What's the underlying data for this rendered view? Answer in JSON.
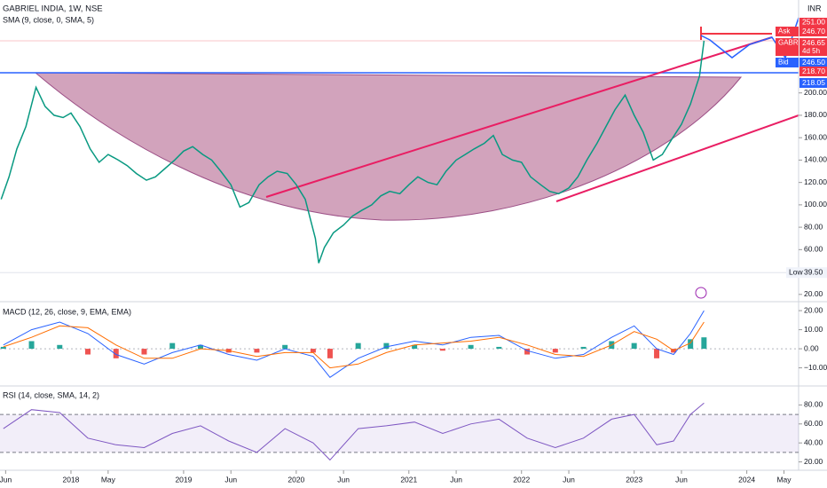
{
  "chart_data": [
    {
      "type": "line",
      "title": "GABRIEL INDIA, 1W, NSE",
      "subtitle": "SMA (9, close, 0, SMA, 5)",
      "currency": "INR",
      "color": "#089981",
      "xlim": [
        2017.37,
        2024.46
      ],
      "ylim": [
        13.5,
        283
      ],
      "xticks": [
        {
          "value": 2017.42,
          "label": "Jun"
        },
        2018,
        {
          "value": 2018.33,
          "label": "May"
        },
        2019,
        {
          "value": 2019.42,
          "label": "Jun"
        },
        2020,
        {
          "value": 2020.42,
          "label": "Jun"
        },
        2021,
        {
          "value": 2021.42,
          "label": "Jun"
        },
        2022,
        {
          "value": 2022.42,
          "label": "Jun"
        },
        2023,
        {
          "value": 2023.42,
          "label": "Jun"
        },
        2024,
        {
          "value": 2024.33,
          "label": "May"
        }
      ],
      "yticks": [
        {
          "value": 200,
          "label": "200.00"
        },
        {
          "value": 180,
          "label": "180.00"
        },
        {
          "value": 160,
          "label": "160.00"
        },
        {
          "value": 140,
          "label": "140.00"
        },
        {
          "value": 120,
          "label": "120.00"
        },
        {
          "value": 100,
          "label": "100.00"
        },
        {
          "value": 80,
          "label": "80.00"
        },
        {
          "value": 60,
          "label": "60.00"
        },
        {
          "value": 20,
          "label": "20.00"
        }
      ],
      "x": [
        2017.38,
        2017.45,
        2017.52,
        2017.6,
        2017.69,
        2017.77,
        2017.85,
        2017.93,
        2018.0,
        2018.08,
        2018.17,
        2018.25,
        2018.33,
        2018.42,
        2018.5,
        2018.58,
        2018.67,
        2018.75,
        2018.83,
        2018.92,
        2019.0,
        2019.08,
        2019.17,
        2019.25,
        2019.33,
        2019.42,
        2019.5,
        2019.58,
        2019.67,
        2019.75,
        2019.83,
        2019.92,
        2020.0,
        2020.08,
        2020.17,
        2020.2,
        2020.25,
        2020.33,
        2020.42,
        2020.5,
        2020.58,
        2020.67,
        2020.75,
        2020.83,
        2020.92,
        2021.0,
        2021.08,
        2021.17,
        2021.25,
        2021.33,
        2021.42,
        2021.5,
        2021.58,
        2021.67,
        2021.75,
        2021.83,
        2021.92,
        2022.0,
        2022.08,
        2022.17,
        2022.25,
        2022.33,
        2022.42,
        2022.5,
        2022.58,
        2022.67,
        2022.75,
        2022.83,
        2022.92,
        2023.0,
        2023.08,
        2023.17,
        2023.25,
        2023.33,
        2023.42,
        2023.5,
        2023.58,
        2023.62
      ],
      "values": [
        105,
        125,
        150,
        170,
        205,
        188,
        180,
        178,
        182,
        170,
        150,
        138,
        145,
        140,
        135,
        128,
        122,
        125,
        132,
        140,
        148,
        152,
        145,
        140,
        130,
        118,
        98,
        102,
        118,
        125,
        130,
        128,
        118,
        105,
        70,
        48,
        62,
        75,
        82,
        90,
        95,
        100,
        108,
        112,
        110,
        118,
        125,
        120,
        118,
        130,
        140,
        145,
        150,
        155,
        162,
        145,
        140,
        138,
        125,
        118,
        112,
        110,
        115,
        125,
        140,
        155,
        170,
        185,
        198,
        180,
        165,
        140,
        145,
        158,
        172,
        190,
        215,
        246.65
      ],
      "price_labels": [
        {
          "tag": "Ask",
          "value": 246.7,
          "label": "246.70",
          "color": "#f23645"
        },
        {
          "tag": "GABRIEL",
          "value": 246.65,
          "label": "246.65",
          "sub": "4d 5h",
          "color": "#f23645"
        },
        {
          "tag": "Bid",
          "value": 246.5,
          "label": "246.50",
          "color": "#2962ff"
        },
        {
          "value": 218.7,
          "label": "218.70",
          "color": "#f23645"
        },
        {
          "value": 218.05,
          "label": "218.05",
          "color": "#2962ff"
        }
      ],
      "top_label": {
        "value": 251,
        "label": "251.00",
        "color": "#f23645"
      },
      "low_label": {
        "tag": "Low",
        "value": 39.5,
        "label": "39.50"
      }
    },
    {
      "type": "macd",
      "title": "MACD (12, 26, close, 9, EMA, EMA)",
      "xlim": [
        2017.37,
        2024.46
      ],
      "ylim": [
        -19.5,
        24.7
      ],
      "yticks": [
        {
          "value": 20,
          "label": "20.00"
        },
        {
          "value": 10,
          "label": "10.00"
        },
        {
          "value": 0,
          "label": "0.00"
        },
        {
          "value": -10,
          "label": "−10.00"
        }
      ],
      "x": [
        2017.4,
        2017.65,
        2017.9,
        2018.15,
        2018.4,
        2018.65,
        2018.9,
        2019.15,
        2019.4,
        2019.65,
        2019.9,
        2020.15,
        2020.3,
        2020.55,
        2020.8,
        2021.05,
        2021.3,
        2021.55,
        2021.8,
        2022.05,
        2022.3,
        2022.55,
        2022.8,
        2023.0,
        2023.2,
        2023.35,
        2023.5,
        2023.62
      ],
      "series": [
        {
          "color": "#2962ff",
          "values": [
            2,
            10,
            14,
            8,
            -3,
            -8,
            -2,
            2,
            -3,
            -6,
            0,
            -4,
            -15,
            -5,
            1,
            4,
            2,
            6,
            7,
            -1,
            -5,
            -3,
            6,
            12,
            0,
            -3,
            8,
            20
          ]
        },
        {
          "color": "#ff6d00",
          "values": [
            1,
            6,
            12,
            11,
            2,
            -5,
            -5,
            0,
            -1,
            -4,
            -2,
            -2,
            -10,
            -8,
            -2,
            2,
            3,
            4,
            6,
            2,
            -3,
            -4,
            2,
            9,
            5,
            -1,
            3,
            14
          ]
        }
      ],
      "histogram": {
        "color": "#26a69a",
        "negative_color": "#ef5350",
        "values": [
          1,
          4,
          2,
          -3,
          -5,
          -3,
          3,
          2,
          -2,
          -2,
          2,
          -2,
          -5,
          3,
          3,
          2,
          -1,
          2,
          1,
          -3,
          -2,
          1,
          4,
          3,
          -5,
          -2,
          5,
          6
        ]
      }
    },
    {
      "type": "rsi",
      "title": "RSI (14, close, SMA, 14, 2)",
      "xlim": [
        2017.37,
        2024.46
      ],
      "ylim": [
        11.2,
        100
      ],
      "color": "#7e57c2",
      "bands": [
        30,
        70
      ],
      "yticks": [
        {
          "value": 80,
          "label": "80.00"
        },
        {
          "value": 60,
          "label": "60.00"
        },
        {
          "value": 40,
          "label": "40.00"
        },
        {
          "value": 20,
          "label": "20.00"
        }
      ],
      "x": [
        2017.4,
        2017.65,
        2017.9,
        2018.15,
        2018.4,
        2018.65,
        2018.9,
        2019.15,
        2019.4,
        2019.65,
        2019.9,
        2020.15,
        2020.3,
        2020.55,
        2020.8,
        2021.05,
        2021.3,
        2021.55,
        2021.8,
        2022.05,
        2022.3,
        2022.55,
        2022.8,
        2023.0,
        2023.2,
        2023.35,
        2023.5,
        2023.62
      ],
      "values": [
        55,
        75,
        72,
        45,
        38,
        35,
        50,
        58,
        42,
        30,
        55,
        40,
        22,
        55,
        58,
        62,
        50,
        60,
        65,
        45,
        35,
        45,
        65,
        70,
        38,
        42,
        70,
        82
      ]
    }
  ]
}
